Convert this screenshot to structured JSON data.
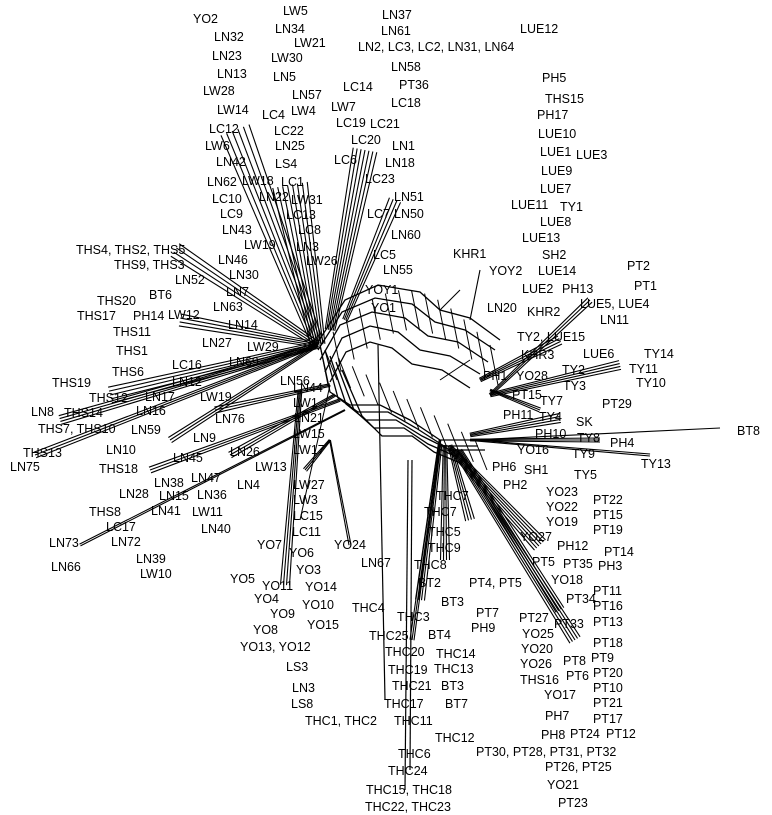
{
  "labels": [
    {
      "id": "l0",
      "text": "YO2"
    },
    {
      "id": "l1",
      "text": "LW5"
    },
    {
      "id": "l2",
      "text": "LN37"
    },
    {
      "id": "l3",
      "text": "LN34"
    },
    {
      "id": "l4",
      "text": "LN61"
    },
    {
      "id": "l5",
      "text": "LUE12"
    },
    {
      "id": "l6",
      "text": "LN32"
    },
    {
      "id": "l7",
      "text": "LW21"
    },
    {
      "id": "l8",
      "text": "LN2, LC3, LC2, LN31, LN64"
    },
    {
      "id": "l9",
      "text": "LN23"
    },
    {
      "id": "l10",
      "text": "LW30"
    },
    {
      "id": "l11",
      "text": "LN13"
    },
    {
      "id": "l12",
      "text": "LN58"
    },
    {
      "id": "l13",
      "text": "PH5"
    },
    {
      "id": "l14",
      "text": "LN5"
    },
    {
      "id": "l15",
      "text": "LC14"
    },
    {
      "id": "l16",
      "text": "PT36"
    },
    {
      "id": "l17",
      "text": "LW28"
    },
    {
      "id": "l18",
      "text": "LN57"
    },
    {
      "id": "l19",
      "text": "THS15"
    },
    {
      "id": "l20",
      "text": "LW7"
    },
    {
      "id": "l21",
      "text": "LC18"
    },
    {
      "id": "l22",
      "text": "LW14"
    },
    {
      "id": "l23",
      "text": "LC4"
    },
    {
      "id": "l24",
      "text": "LW4"
    },
    {
      "id": "l25",
      "text": "PH17"
    },
    {
      "id": "l26",
      "text": "LC19"
    },
    {
      "id": "l27",
      "text": "LC21"
    },
    {
      "id": "l28",
      "text": "LC12"
    },
    {
      "id": "l29",
      "text": "LC22"
    },
    {
      "id": "l30",
      "text": "LUE10"
    },
    {
      "id": "l31",
      "text": "LC20"
    },
    {
      "id": "l32",
      "text": "LW6"
    },
    {
      "id": "l33",
      "text": "LN25"
    },
    {
      "id": "l34",
      "text": "LN1"
    },
    {
      "id": "l35",
      "text": "LUE1"
    },
    {
      "id": "l36",
      "text": "LUE3"
    },
    {
      "id": "l37",
      "text": "LN42"
    },
    {
      "id": "l38",
      "text": "LC6"
    },
    {
      "id": "l39",
      "text": "LN18"
    },
    {
      "id": "l40",
      "text": "LS4"
    },
    {
      "id": "l41",
      "text": "LUE9"
    },
    {
      "id": "l42",
      "text": "LN62"
    },
    {
      "id": "l43",
      "text": "LW18"
    },
    {
      "id": "l44",
      "text": "LC1"
    },
    {
      "id": "l45",
      "text": "LC23"
    },
    {
      "id": "l46",
      "text": "LUE7"
    },
    {
      "id": "l47",
      "text": "LC10"
    },
    {
      "id": "l48",
      "text": "LN22"
    },
    {
      "id": "l49",
      "text": "LW31"
    },
    {
      "id": "l50",
      "text": "LN51"
    },
    {
      "id": "l51",
      "text": "LUE11"
    },
    {
      "id": "l52",
      "text": "TY1"
    },
    {
      "id": "l53",
      "text": "LC9"
    },
    {
      "id": "l54",
      "text": "LC13"
    },
    {
      "id": "l55",
      "text": "LC7"
    },
    {
      "id": "l56",
      "text": "LN50"
    },
    {
      "id": "l57",
      "text": "LUE8"
    },
    {
      "id": "l58",
      "text": "LN43"
    },
    {
      "id": "l59",
      "text": "LC8"
    },
    {
      "id": "l60",
      "text": "LN60"
    },
    {
      "id": "l61",
      "text": "LUE13"
    },
    {
      "id": "l62",
      "text": "THS4, THS2, THS5"
    },
    {
      "id": "l63",
      "text": "LW19"
    },
    {
      "id": "l64",
      "text": "LN3"
    },
    {
      "id": "l65",
      "text": "KHR1"
    },
    {
      "id": "l66",
      "text": "SH2"
    },
    {
      "id": "l67",
      "text": "LN46"
    },
    {
      "id": "l68",
      "text": "LW26"
    },
    {
      "id": "l69",
      "text": "LC5"
    },
    {
      "id": "l70",
      "text": "THS9, THS3"
    },
    {
      "id": "l71",
      "text": "LN55"
    },
    {
      "id": "l72",
      "text": "YOY2"
    },
    {
      "id": "l73",
      "text": "LUE14"
    },
    {
      "id": "l74",
      "text": "PT2"
    },
    {
      "id": "l75",
      "text": "LN30"
    },
    {
      "id": "l76",
      "text": "LN52"
    },
    {
      "id": "l77",
      "text": "PT1"
    },
    {
      "id": "l78",
      "text": "LN7"
    },
    {
      "id": "l79",
      "text": "BT6"
    },
    {
      "id": "l80",
      "text": "YOY1"
    },
    {
      "id": "l81",
      "text": "LUE2"
    },
    {
      "id": "l82",
      "text": "PH13"
    },
    {
      "id": "l83",
      "text": "THS20"
    },
    {
      "id": "l84",
      "text": "LN63"
    },
    {
      "id": "l85",
      "text": "LUE5, LUE4"
    },
    {
      "id": "l86",
      "text": "YO1"
    },
    {
      "id": "l87",
      "text": "LN20"
    },
    {
      "id": "l88",
      "text": "KHR2"
    },
    {
      "id": "l89",
      "text": "THS17"
    },
    {
      "id": "l90",
      "text": "PH14"
    },
    {
      "id": "l91",
      "text": "LW12"
    },
    {
      "id": "l92",
      "text": "LN11"
    },
    {
      "id": "l93",
      "text": "LN14"
    },
    {
      "id": "l94",
      "text": "THS11"
    },
    {
      "id": "l95",
      "text": "TY2, LUE15"
    },
    {
      "id": "l96",
      "text": "LN27"
    },
    {
      "id": "l97",
      "text": "LW29"
    },
    {
      "id": "l98",
      "text": "THS1"
    },
    {
      "id": "l99",
      "text": "KHR3"
    },
    {
      "id": "l100",
      "text": "LUE6"
    },
    {
      "id": "l101",
      "text": "TY14"
    },
    {
      "id": "l102",
      "text": "LN69"
    },
    {
      "id": "l103",
      "text": "LC16"
    },
    {
      "id": "l104",
      "text": "THS6"
    },
    {
      "id": "l105",
      "text": "TY11"
    },
    {
      "id": "l106",
      "text": "TY2"
    },
    {
      "id": "l107",
      "text": "PH1"
    },
    {
      "id": "l108",
      "text": "YO28"
    },
    {
      "id": "l109",
      "text": "THS19"
    },
    {
      "id": "l110",
      "text": "LN12"
    },
    {
      "id": "l111",
      "text": "TY3"
    },
    {
      "id": "l112",
      "text": "TY10"
    },
    {
      "id": "l113",
      "text": "LN56"
    },
    {
      "id": "l114",
      "text": "LN44"
    },
    {
      "id": "l115",
      "text": "THS12"
    },
    {
      "id": "l116",
      "text": "LN17"
    },
    {
      "id": "l117",
      "text": "LW19"
    },
    {
      "id": "l118",
      "text": "PT15"
    },
    {
      "id": "l119",
      "text": "LN8"
    },
    {
      "id": "l120",
      "text": "THS14"
    },
    {
      "id": "l121",
      "text": "LN16"
    },
    {
      "id": "l122",
      "text": "LW1"
    },
    {
      "id": "l123",
      "text": "TY7"
    },
    {
      "id": "l124",
      "text": "PT29"
    },
    {
      "id": "l125",
      "text": "LN76"
    },
    {
      "id": "l126",
      "text": "LN21"
    },
    {
      "id": "l127",
      "text": "PH11"
    },
    {
      "id": "l128",
      "text": "TY4"
    },
    {
      "id": "l129",
      "text": "THS7, THS10"
    },
    {
      "id": "l130",
      "text": "LN59"
    },
    {
      "id": "l131",
      "text": "SK"
    },
    {
      "id": "l132",
      "text": "LN9"
    },
    {
      "id": "l133",
      "text": "LW15"
    },
    {
      "id": "l134",
      "text": "BT8"
    },
    {
      "id": "l135",
      "text": "THS13"
    },
    {
      "id": "l136",
      "text": "LN10"
    },
    {
      "id": "l137",
      "text": "LN45"
    },
    {
      "id": "l138",
      "text": "LW17"
    },
    {
      "id": "l139",
      "text": "PH10"
    },
    {
      "id": "l140",
      "text": "TY8"
    },
    {
      "id": "l141",
      "text": "PH4"
    },
    {
      "id": "l142",
      "text": "LN26"
    },
    {
      "id": "l143",
      "text": "YO16"
    },
    {
      "id": "l144",
      "text": "TY9"
    },
    {
      "id": "l145",
      "text": "LN75"
    },
    {
      "id": "l146",
      "text": "THS18"
    },
    {
      "id": "l147",
      "text": "LW13"
    },
    {
      "id": "l148",
      "text": "TY13"
    },
    {
      "id": "l149",
      "text": "PH6"
    },
    {
      "id": "l150",
      "text": "SH1"
    },
    {
      "id": "l151",
      "text": "LN38"
    },
    {
      "id": "l152",
      "text": "LN47"
    },
    {
      "id": "l153",
      "text": "TY5"
    },
    {
      "id": "l154",
      "text": "LN4"
    },
    {
      "id": "l155",
      "text": "PH2"
    },
    {
      "id": "l156",
      "text": "LN28"
    },
    {
      "id": "l157",
      "text": "LN15"
    },
    {
      "id": "l158",
      "text": "LN36"
    },
    {
      "id": "l159",
      "text": "LW27"
    },
    {
      "id": "l160",
      "text": "YO23"
    },
    {
      "id": "l161",
      "text": "PT22"
    },
    {
      "id": "l162",
      "text": "THC7"
    },
    {
      "id": "l163",
      "text": "LW3"
    },
    {
      "id": "l164",
      "text": "YO22"
    },
    {
      "id": "l165",
      "text": "THS8"
    },
    {
      "id": "l166",
      "text": "LN41"
    },
    {
      "id": "l167",
      "text": "LW11"
    },
    {
      "id": "l168",
      "text": "PT15"
    },
    {
      "id": "l169",
      "text": "THC7"
    },
    {
      "id": "l170",
      "text": "LC15"
    },
    {
      "id": "l171",
      "text": "YO19"
    },
    {
      "id": "l172",
      "text": "LC17"
    },
    {
      "id": "l173",
      "text": "LN40"
    },
    {
      "id": "l174",
      "text": "LC11"
    },
    {
      "id": "l175",
      "text": "PT19"
    },
    {
      "id": "l176",
      "text": "THC5"
    },
    {
      "id": "l177",
      "text": "LN73"
    },
    {
      "id": "l178",
      "text": "LN72"
    },
    {
      "id": "l179",
      "text": "YO27"
    },
    {
      "id": "l180",
      "text": "YO7"
    },
    {
      "id": "l181",
      "text": "YO24"
    },
    {
      "id": "l182",
      "text": "THC9"
    },
    {
      "id": "l183",
      "text": "PH12"
    },
    {
      "id": "l184",
      "text": "PT14"
    },
    {
      "id": "l185",
      "text": "YO6"
    },
    {
      "id": "l186",
      "text": "LN39"
    },
    {
      "id": "l187",
      "text": "PT5"
    },
    {
      "id": "l188",
      "text": "PT35"
    },
    {
      "id": "l189",
      "text": "PH3"
    },
    {
      "id": "l190",
      "text": "LN66"
    },
    {
      "id": "l191",
      "text": "LN67"
    },
    {
      "id": "l192",
      "text": "THC8"
    },
    {
      "id": "l193",
      "text": "LW10"
    },
    {
      "id": "l194",
      "text": "YO3"
    },
    {
      "id": "l195",
      "text": "YO5"
    },
    {
      "id": "l196",
      "text": "YO14"
    },
    {
      "id": "l197",
      "text": "PT4, PT5"
    },
    {
      "id": "l198",
      "text": "YO18"
    },
    {
      "id": "l199",
      "text": "PT11"
    },
    {
      "id": "l200",
      "text": "YO11"
    },
    {
      "id": "l201",
      "text": "BT2"
    },
    {
      "id": "l202",
      "text": "YO4"
    },
    {
      "id": "l203",
      "text": "PT34"
    },
    {
      "id": "l204",
      "text": "PT16"
    },
    {
      "id": "l205",
      "text": "YO10"
    },
    {
      "id": "l206",
      "text": "BT3"
    },
    {
      "id": "l207",
      "text": "YO9"
    },
    {
      "id": "l208",
      "text": "THC4"
    },
    {
      "id": "l209",
      "text": "PT7"
    },
    {
      "id": "l210",
      "text": "PT27"
    },
    {
      "id": "l211",
      "text": "PT13"
    },
    {
      "id": "l212",
      "text": "THC3"
    },
    {
      "id": "l213",
      "text": "PT33"
    },
    {
      "id": "l214",
      "text": "YO15"
    },
    {
      "id": "l215",
      "text": "PH9"
    },
    {
      "id": "l216",
      "text": "YO8"
    },
    {
      "id": "l217",
      "text": "YO25"
    },
    {
      "id": "l218",
      "text": "BT4"
    },
    {
      "id": "l219",
      "text": "THC25"
    },
    {
      "id": "l220",
      "text": "PT18"
    },
    {
      "id": "l221",
      "text": "YO13, YO12"
    },
    {
      "id": "l222",
      "text": "THC14"
    },
    {
      "id": "l223",
      "text": "THC20"
    },
    {
      "id": "l224",
      "text": "YO20"
    },
    {
      "id": "l225",
      "text": "PT9"
    },
    {
      "id": "l226",
      "text": "LS3"
    },
    {
      "id": "l227",
      "text": "THC13"
    },
    {
      "id": "l228",
      "text": "PT8"
    },
    {
      "id": "l229",
      "text": "THC19"
    },
    {
      "id": "l230",
      "text": "YO26"
    },
    {
      "id": "l231",
      "text": "PT20"
    },
    {
      "id": "l232",
      "text": "PT6"
    },
    {
      "id": "l233",
      "text": "THS16"
    },
    {
      "id": "l234",
      "text": "LN3"
    },
    {
      "id": "l235",
      "text": "THC21"
    },
    {
      "id": "l236",
      "text": "BT3"
    },
    {
      "id": "l237",
      "text": "PT10"
    },
    {
      "id": "l238",
      "text": "YO17"
    },
    {
      "id": "l239",
      "text": "LS8"
    },
    {
      "id": "l240",
      "text": "BT7"
    },
    {
      "id": "l241",
      "text": "THC17"
    },
    {
      "id": "l242",
      "text": "PT21"
    },
    {
      "id": "l243",
      "text": "PH7"
    },
    {
      "id": "l244",
      "text": "PT17"
    },
    {
      "id": "l245",
      "text": "THC1, THC2"
    },
    {
      "id": "l246",
      "text": "THC11"
    },
    {
      "id": "l247",
      "text": "PH8"
    },
    {
      "id": "l248",
      "text": "PT24"
    },
    {
      "id": "l249",
      "text": "PT12"
    },
    {
      "id": "l250",
      "text": "THC12"
    },
    {
      "id": "l251",
      "text": "PT30, PT28, PT31, PT32"
    },
    {
      "id": "l252",
      "text": "THC6"
    },
    {
      "id": "l253",
      "text": "PT26, PT25"
    },
    {
      "id": "l254",
      "text": "THC24"
    },
    {
      "id": "l255",
      "text": "YO21"
    },
    {
      "id": "l256",
      "text": "THC15, THC18"
    },
    {
      "id": "l257",
      "text": "PT23"
    },
    {
      "id": "l258",
      "text": "THC22, THC23"
    }
  ]
}
